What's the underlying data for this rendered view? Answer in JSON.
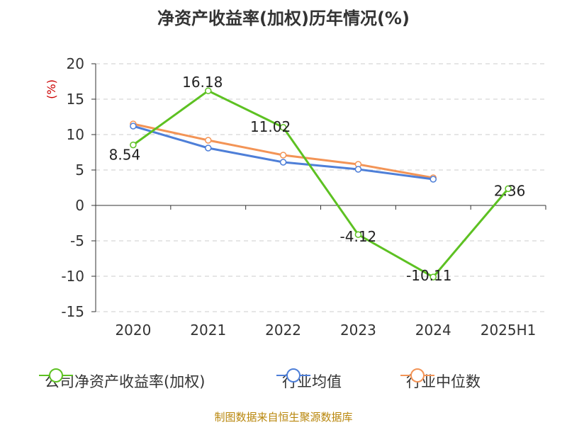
{
  "title": "净资产收益率(加权)历年情况(%)",
  "footer": "制图数据来自恒生聚源数据库",
  "colors": {
    "company": "#5dc122",
    "avg": "#4e7fd8",
    "median": "#f39456"
  },
  "chart_data": {
    "type": "line",
    "title": "净资产收益率(加权)历年情况(%)",
    "ylabel": "(%)",
    "xlabel": "",
    "categories": [
      "2020",
      "2021",
      "2022",
      "2023",
      "2024",
      "2025H1"
    ],
    "ylim": [
      -15,
      20
    ],
    "yticks": [
      20,
      15,
      10,
      5,
      0,
      -5,
      -10,
      -15
    ],
    "grid": true,
    "legend_position": "bottom",
    "series": [
      {
        "name": "公司净资产收益率(加权)",
        "key": "company",
        "values": [
          8.54,
          16.18,
          11.02,
          -4.12,
          -10.11,
          2.36
        ],
        "labels": [
          "8.54",
          "16.18",
          "11.02",
          "-4.12",
          "-10.11",
          "2.36"
        ]
      },
      {
        "name": "行业均值",
        "key": "avg",
        "values": [
          11.2,
          8.1,
          6.1,
          5.1,
          3.7,
          null
        ]
      },
      {
        "name": "行业中位数",
        "key": "median",
        "values": [
          11.5,
          9.2,
          7.1,
          5.8,
          3.9,
          null
        ]
      }
    ]
  }
}
